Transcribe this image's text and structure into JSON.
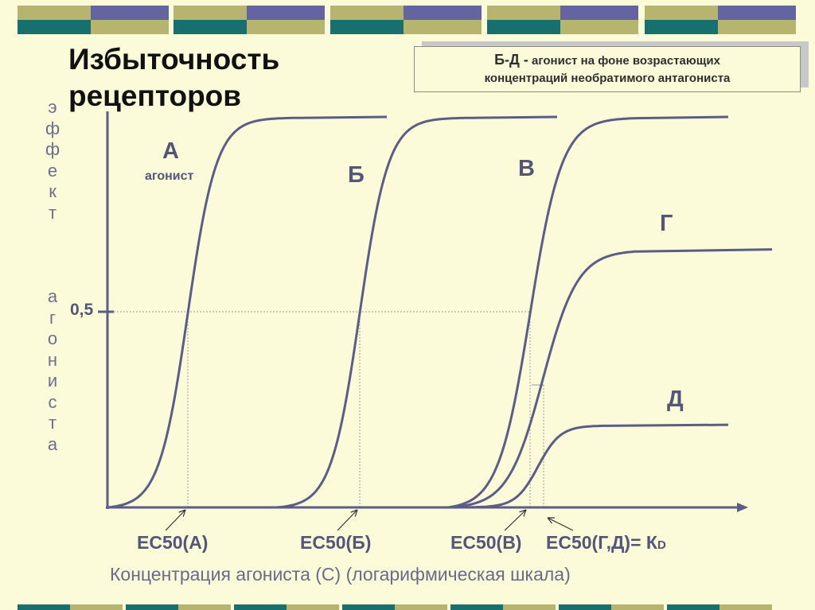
{
  "title_line1": "Избыточность",
  "title_line2": "рецепторов",
  "note": {
    "head": "Б-Д -",
    "line1_rest": "агонист на фоне возрастающих",
    "line2": "концентраций необратимого антагониста"
  },
  "ylabel_word1": [
    "э",
    "ф",
    "ф",
    "е",
    "к",
    "т"
  ],
  "ylabel_word2": [
    "а",
    "г",
    "о",
    "н",
    "и",
    "с",
    "т",
    "а"
  ],
  "y_tick": "0,5",
  "agonist_label": "агонист",
  "ec_labels": {
    "a": "ЕС50(А)",
    "b": "ЕС50(Б)",
    "c": "ЕС50(В)",
    "d_main": "ЕС50(Г,Д)= К",
    "d_sub": "D"
  },
  "xlabel": "Концентрация агониста (С) (логарифмическая шкала)",
  "colors": {
    "curve": "#5c5c86",
    "axis": "#5c5c86",
    "band_olive": "#b7b470",
    "band_slate": "#6464a0",
    "band_teal": "#18706e",
    "band_pale": "#dedcb0"
  },
  "chart_data": {
    "type": "line",
    "xlabel": "Концентрация агониста (С) (логарифмическая шкала)",
    "ylabel": "эффект агониста",
    "x_scale": "log",
    "y_ticks": [
      "0,5"
    ],
    "ylim": [
      0,
      1
    ],
    "series": [
      {
        "name": "А",
        "ec50_label": "ЕС50(А)",
        "max_effect": 1.0
      },
      {
        "name": "Б",
        "ec50_label": "ЕС50(Б)",
        "max_effect": 1.0
      },
      {
        "name": "В",
        "ec50_label": "ЕС50(В)",
        "max_effect": 1.0
      },
      {
        "name": "Г",
        "ec50_label": "ЕС50(Г,Д)= КD",
        "max_effect": 0.66
      },
      {
        "name": "Д",
        "ec50_label": "ЕС50(Г,Д)= КD",
        "max_effect": 0.21
      }
    ],
    "grid": false,
    "legend": "none"
  }
}
